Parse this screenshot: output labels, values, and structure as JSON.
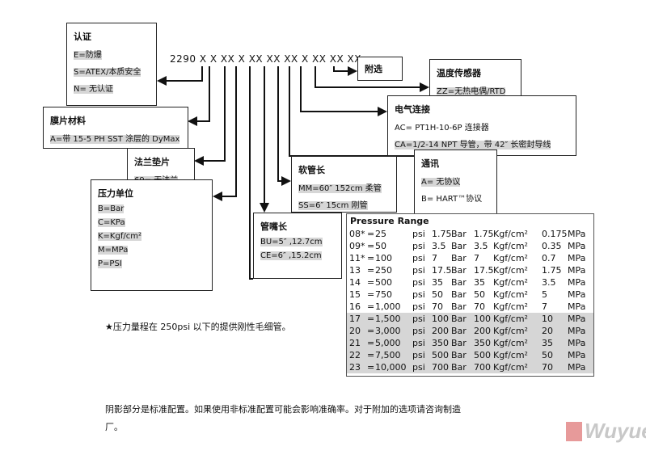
{
  "code": "2290 X X XX X XX XX XX X XX XX XX",
  "boxes": {
    "cert": {
      "title": "认证",
      "items": [
        "E=防爆",
        "S=ATEX/本质安全",
        "N= 无认证"
      ]
    },
    "diaphragm": {
      "title": "膜片材料",
      "items": [
        "A=带 15-5 PH SST 涂层的 DyMax"
      ]
    },
    "flange": {
      "title": "法兰垫片",
      "items": [
        "69= 无法兰"
      ]
    },
    "unit": {
      "title": "压力单位",
      "items": [
        "B=Bar",
        "C=KPa",
        "K=Kgf/cm²",
        "M=MPa",
        "P=PSI"
      ]
    },
    "nozzle": {
      "title": "管嘴长",
      "items": [
        "BU=5″ ,12.7cm",
        "CE=6″ ,15.2cm"
      ]
    },
    "hose": {
      "title": "软管长",
      "items": [
        "MM=60″ 152cm 柔管",
        "SS=6″ 15cm 刚管"
      ]
    },
    "comm": {
      "title": "通讯",
      "items": [
        "A= 无协议",
        "B= HART™协议"
      ]
    },
    "electrical": {
      "title": "电气连接",
      "items": [
        "AC= PT1H-10-6P 连接器",
        "CA=1/2-14 NPT 导管，带 42″ 长密封导线"
      ]
    },
    "temp": {
      "title": "温度传感器",
      "items": [
        "ZZ=无热电偶/RTD"
      ]
    },
    "option": {
      "title": "附选"
    }
  },
  "pressure_table": {
    "title": "Pressure Range",
    "rows": [
      [
        "08*",
        "=",
        "25",
        "psi",
        "1.75",
        "Bar",
        "1.75",
        "Kgf/cm²",
        "0.175",
        "MPa"
      ],
      [
        "09*",
        "=",
        "50",
        "psi",
        "3.5",
        "Bar",
        "3.5",
        "Kgf/cm²",
        "0.35",
        "MPa"
      ],
      [
        "11*",
        "=",
        "100",
        "psi",
        "7",
        "Bar",
        "7",
        "Kgf/cm²",
        "0.7",
        "MPa"
      ],
      [
        "13",
        "=",
        "250",
        "psi",
        "17.5",
        "Bar",
        "17.5",
        "Kgf/cm²",
        "1.75",
        "MPa"
      ],
      [
        "14",
        "=",
        "500",
        "psi",
        "35",
        "Bar",
        "35",
        "Kgf/cm²",
        "3.5",
        "MPa"
      ],
      [
        "15",
        "=",
        "750",
        "psi",
        "50",
        "Bar",
        "50",
        "Kgf/cm²",
        "5",
        "MPa"
      ],
      [
        "16",
        "=",
        "1,000",
        "psi",
        "70",
        "Bar",
        "70",
        "Kgf/cm²",
        "7",
        "MPa"
      ],
      [
        "17",
        "=",
        "1,500",
        "psi",
        "100",
        "Bar",
        "100",
        "Kgf/cm²",
        "10",
        "MPa"
      ],
      [
        "20",
        "=",
        "3,000",
        "psi",
        "200",
        "Bar",
        "200",
        "Kgf/cm²",
        "20",
        "MPa"
      ],
      [
        "21",
        "=",
        "5,000",
        "psi",
        "350",
        "Bar",
        "350",
        "Kgf/cm²",
        "35",
        "MPa"
      ],
      [
        "22",
        "=",
        "7,500",
        "psi",
        "500",
        "Bar",
        "500",
        "Kgf/cm²",
        "50",
        "MPa"
      ],
      [
        "23",
        "=",
        "10,000",
        "psi",
        "700",
        "Bar",
        "700",
        "Kgf/cm²",
        "70",
        "MPa"
      ]
    ],
    "shaded_from_row": 7,
    "shade_color": "#d6d6d6"
  },
  "footnote": "★压力量程在 250psi 以下的提供刚性毛细管。",
  "bottom_note": [
    "阴影部分是标准配置。如果使用非标准配置可能会影响准确率。对于附加的选项请咨询制造",
    "厂。"
  ],
  "logo": "Wuyue"
}
